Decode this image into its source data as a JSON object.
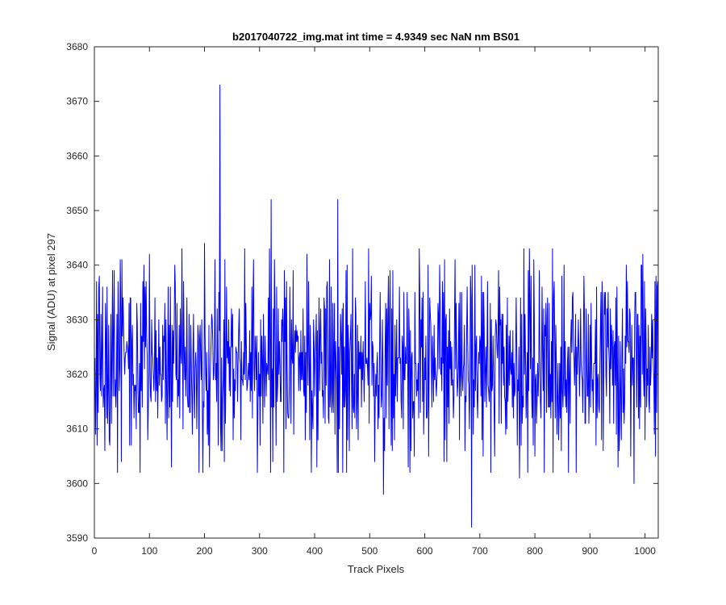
{
  "chart_data": {
    "type": "line",
    "title": "b2017040722_img.mat int time = 4.9349 sec  NaN nm BS01",
    "xlabel": "Track Pixels",
    "ylabel": "Signal (ADU) at pixel 297",
    "xlim": [
      0,
      1024
    ],
    "ylim": [
      3590,
      3680
    ],
    "xticks": [
      0,
      100,
      200,
      300,
      400,
      500,
      600,
      700,
      800,
      900,
      1000
    ],
    "yticks": [
      3590,
      3600,
      3610,
      3620,
      3630,
      3640,
      3650,
      3660,
      3670,
      3680
    ],
    "grid": false,
    "series_color": "#0000ff",
    "series": [
      {
        "mode": "noise",
        "n_points": 1024,
        "x_start": 1,
        "baseline": 3622,
        "noise_amplitude": 10,
        "noise_min": 3602,
        "noise_max": 3643,
        "peaks": [
          {
            "x": 1,
            "y": 3623
          },
          {
            "x": 5,
            "y": 3607
          },
          {
            "x": 9,
            "y": 3638
          },
          {
            "x": 28,
            "y": 3607
          },
          {
            "x": 33,
            "y": 3639
          },
          {
            "x": 47,
            "y": 3641
          },
          {
            "x": 66,
            "y": 3634
          },
          {
            "x": 140,
            "y": 3603
          },
          {
            "x": 147,
            "y": 3636
          },
          {
            "x": 197,
            "y": 3602
          },
          {
            "x": 200,
            "y": 3644
          },
          {
            "x": 228,
            "y": 3673
          },
          {
            "x": 230,
            "y": 3606
          },
          {
            "x": 321,
            "y": 3652
          },
          {
            "x": 442,
            "y": 3652
          },
          {
            "x": 525,
            "y": 3598
          },
          {
            "x": 590,
            "y": 3643
          },
          {
            "x": 685,
            "y": 3592
          },
          {
            "x": 772,
            "y": 3601
          },
          {
            "x": 980,
            "y": 3600
          },
          {
            "x": 1020,
            "y": 3638
          }
        ]
      }
    ]
  }
}
